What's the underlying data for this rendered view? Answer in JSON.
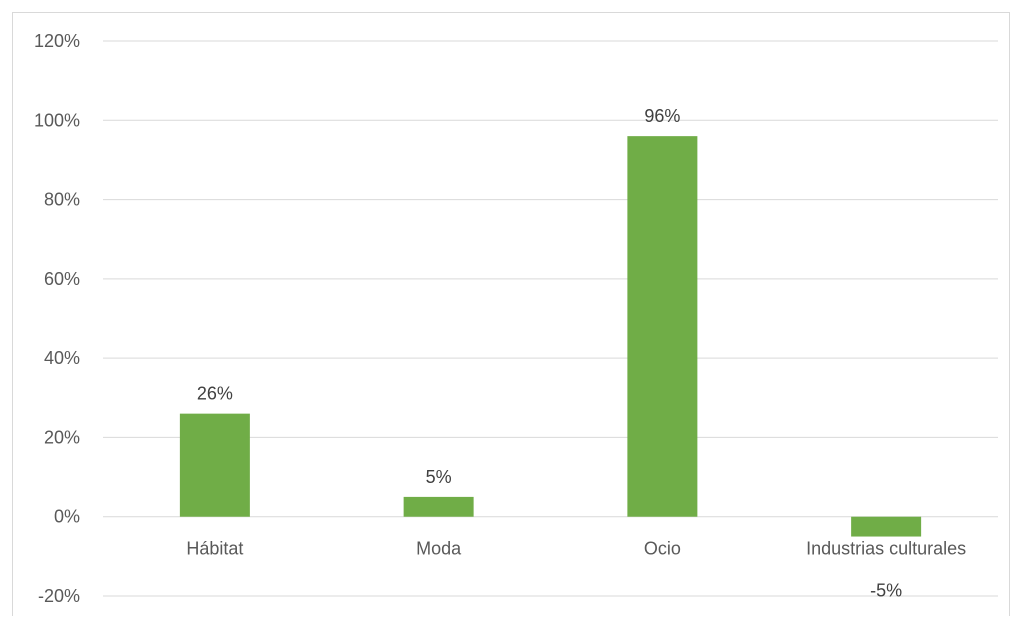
{
  "chart_data": {
    "type": "bar",
    "categories": [
      "Hábitat",
      "Moda",
      "Ocio",
      "Industrias culturales"
    ],
    "values": [
      26,
      5,
      96,
      -5
    ],
    "data_labels": [
      "26%",
      "5%",
      "96%",
      "-5%"
    ],
    "yticks": [
      -20,
      0,
      20,
      40,
      60,
      80,
      100,
      120
    ],
    "ytick_labels": [
      "-20%",
      "0%",
      "20%",
      "40%",
      "60%",
      "80%",
      "100%",
      "120%"
    ],
    "ylim": [
      -20,
      120
    ],
    "grid": true,
    "bar_color": "#70ad47",
    "grid_color": "#d9d9d9",
    "title": "",
    "xlabel": "",
    "ylabel": ""
  }
}
